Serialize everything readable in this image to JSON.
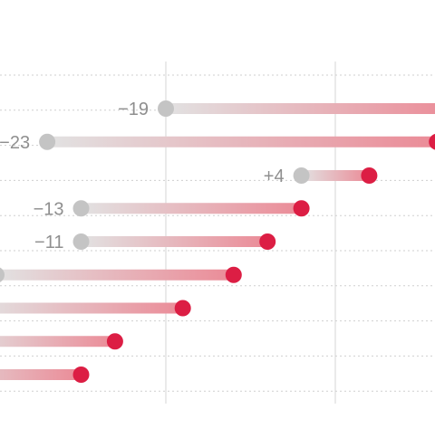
{
  "chart_data": {
    "type": "dumbbell",
    "x_gridline_positions": [
      0,
      50
    ],
    "rows": [
      {
        "start": 0,
        "end": 85,
        "label": "−19"
      },
      {
        "start": -35,
        "end": 80,
        "label": "−23"
      },
      {
        "start": 40,
        "end": 60,
        "label": "+4"
      },
      {
        "start": -25,
        "end": 40,
        "label": "−13"
      },
      {
        "start": -25,
        "end": 30,
        "label": "−11"
      },
      {
        "start": -50,
        "end": 20,
        "label": ""
      },
      {
        "start": -55,
        "end": 5,
        "label": ""
      },
      {
        "start": -60,
        "end": -15,
        "label": ""
      },
      {
        "start": -70,
        "end": -25,
        "label": ""
      }
    ],
    "colors": {
      "start_dot": "#c4c4c4",
      "end_dot": "#dc1e44",
      "bar_start": "#e2e2e2",
      "bar_end": "#eb8b97",
      "row_line": "#cfcfcf",
      "gridline": "#dddddd",
      "label": "#8f8f8f"
    }
  }
}
